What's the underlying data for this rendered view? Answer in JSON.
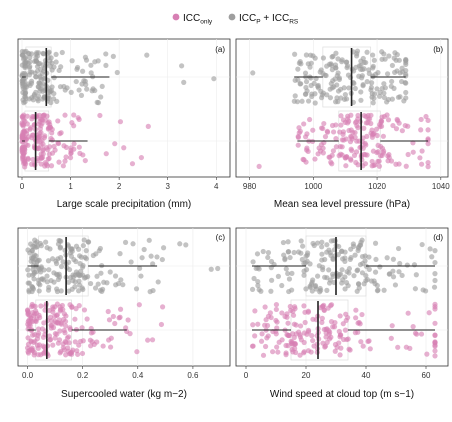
{
  "legend": {
    "items": [
      {
        "main": "ICC",
        "sub": "only",
        "color": "#d77fb3"
      },
      {
        "main": "ICC",
        "sub": "P",
        "mid": " + ICC",
        "sub2": "RS",
        "color": "#9e9e9e"
      }
    ]
  },
  "colors": {
    "icc_only": "#d77fb3",
    "icc_p_rs": "#9e9e9e",
    "median_line": "#222222",
    "grid": "#ebebeb"
  },
  "chart_data": [
    {
      "type": "scatter",
      "panel": "(a)",
      "xlabel": "Large scale precipitation (mm)",
      "xlim": [
        0,
        4.2
      ],
      "xticks": [
        0,
        1,
        2,
        3,
        4
      ],
      "tick_labels": [
        "0",
        "1",
        "2",
        "3",
        "4"
      ],
      "groups": [
        {
          "name": "ICC_P + ICC_RS",
          "lower_whisker": 0,
          "q1": 0.08,
          "median": 0.5,
          "q3": 0.6,
          "upper_whisker": 1.8,
          "max": 3.95
        },
        {
          "name": "ICC_only",
          "lower_whisker": 0,
          "q1": 0.06,
          "median": 0.28,
          "q3": 0.55,
          "upper_whisker": 1.35,
          "max": 2.6
        }
      ]
    },
    {
      "type": "scatter",
      "panel": "(b)",
      "xlabel": "Mean sea level pressure (hPa)",
      "xlim": [
        977,
        1041
      ],
      "xticks": [
        980,
        1000,
        1020,
        1040
      ],
      "tick_labels": [
        "980",
        "1000",
        "1020",
        "1040"
      ],
      "groups": [
        {
          "name": "ICC_P + ICC_RS",
          "lower_whisker": 994,
          "q1": 1003,
          "median": 1012,
          "q3": 1018,
          "upper_whisker": 1029,
          "min": 981
        },
        {
          "name": "ICC_only",
          "lower_whisker": 995,
          "q1": 1008,
          "median": 1015,
          "q3": 1021,
          "upper_whisker": 1036,
          "min": 983
        }
      ]
    },
    {
      "type": "scatter",
      "panel": "(c)",
      "xlabel": "Supercooled water (kg m−2)",
      "xlim": [
        -0.02,
        0.72
      ],
      "xticks": [
        0,
        0.2,
        0.4,
        0.6
      ],
      "tick_labels": [
        "0.0",
        "0.2",
        "0.4",
        "0.6"
      ],
      "groups": [
        {
          "name": "ICC_P + ICC_RS",
          "lower_whisker": 0,
          "q1": 0.04,
          "median": 0.14,
          "q3": 0.22,
          "upper_whisker": 0.47,
          "max": 0.69
        },
        {
          "name": "ICC_only",
          "lower_whisker": 0,
          "q1": 0.03,
          "median": 0.07,
          "q3": 0.16,
          "upper_whisker": 0.36,
          "max": 0.49
        }
      ]
    },
    {
      "type": "scatter",
      "panel": "(d)",
      "xlabel": "Wind speed at cloud top (m s−1)",
      "xlim": [
        -2,
        66
      ],
      "xticks": [
        0,
        20,
        40,
        60
      ],
      "tick_labels": [
        "0",
        "20",
        "40",
        "60"
      ],
      "groups": [
        {
          "name": "ICC_P + ICC_RS",
          "lower_whisker": 2,
          "q1": 20,
          "median": 30,
          "q3": 40,
          "upper_whisker": 63
        },
        {
          "name": "ICC_only",
          "lower_whisker": 2,
          "q1": 15,
          "median": 24,
          "q3": 34,
          "upper_whisker": 63
        }
      ]
    }
  ]
}
